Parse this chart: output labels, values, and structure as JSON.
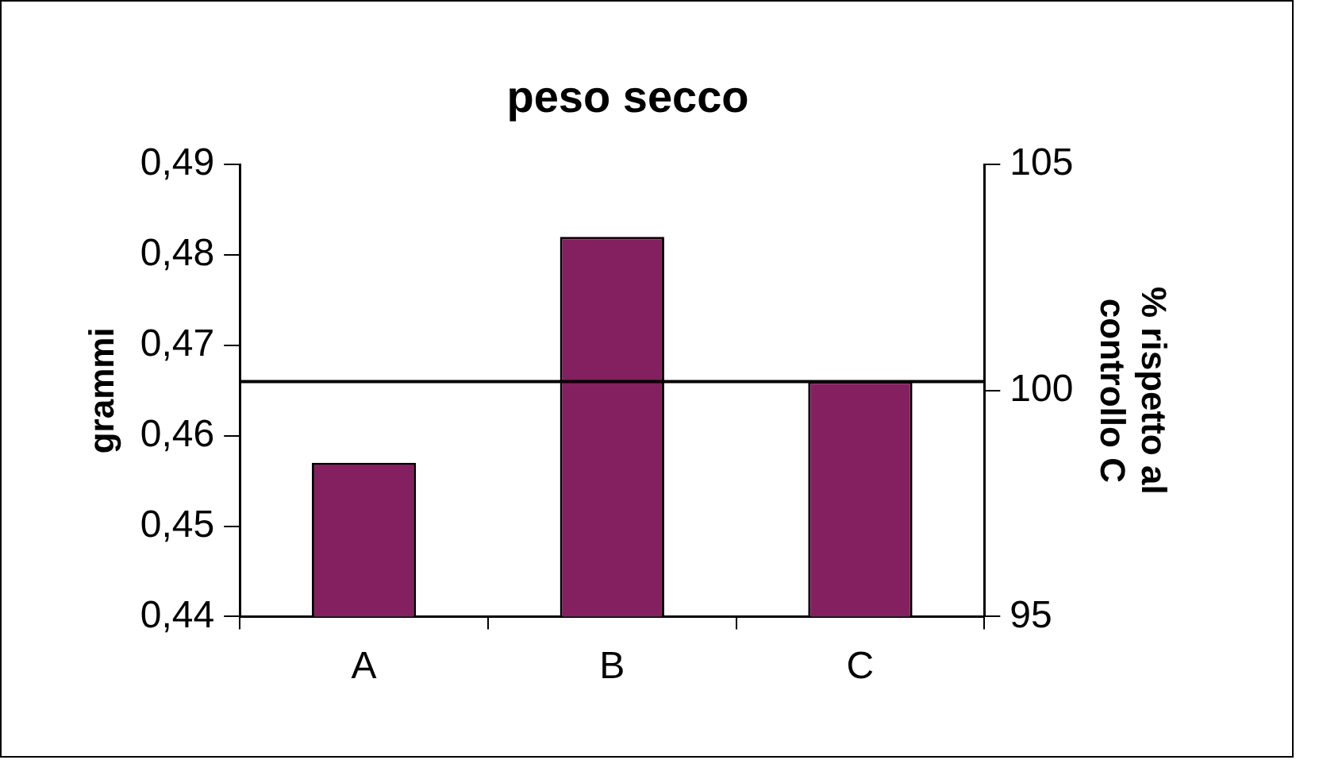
{
  "chart_data": {
    "type": "bar",
    "title": "peso secco",
    "ylabel": "grammi",
    "y2label": "% rispetto al\ncontrollo C",
    "categories": [
      "A",
      "B",
      "C"
    ],
    "series": [
      {
        "color": "#842060",
        "values": [
          0.457,
          0.482,
          0.466
        ]
      }
    ],
    "ylim": [
      0.44,
      0.49
    ],
    "yticks": [
      {
        "value": 0.44,
        "label": "0,44"
      },
      {
        "value": 0.45,
        "label": "0,45"
      },
      {
        "value": 0.46,
        "label": "0,46"
      },
      {
        "value": 0.47,
        "label": "0,47"
      },
      {
        "value": 0.48,
        "label": "0,48"
      },
      {
        "value": 0.49,
        "label": "0,49"
      }
    ],
    "y2lim": [
      95,
      105
    ],
    "y2ticks": [
      95,
      100,
      105
    ],
    "ref_lines": [
      {
        "axis": "y",
        "value": 0.466,
        "color": "#000000"
      }
    ],
    "legend": false,
    "grid": false
  }
}
